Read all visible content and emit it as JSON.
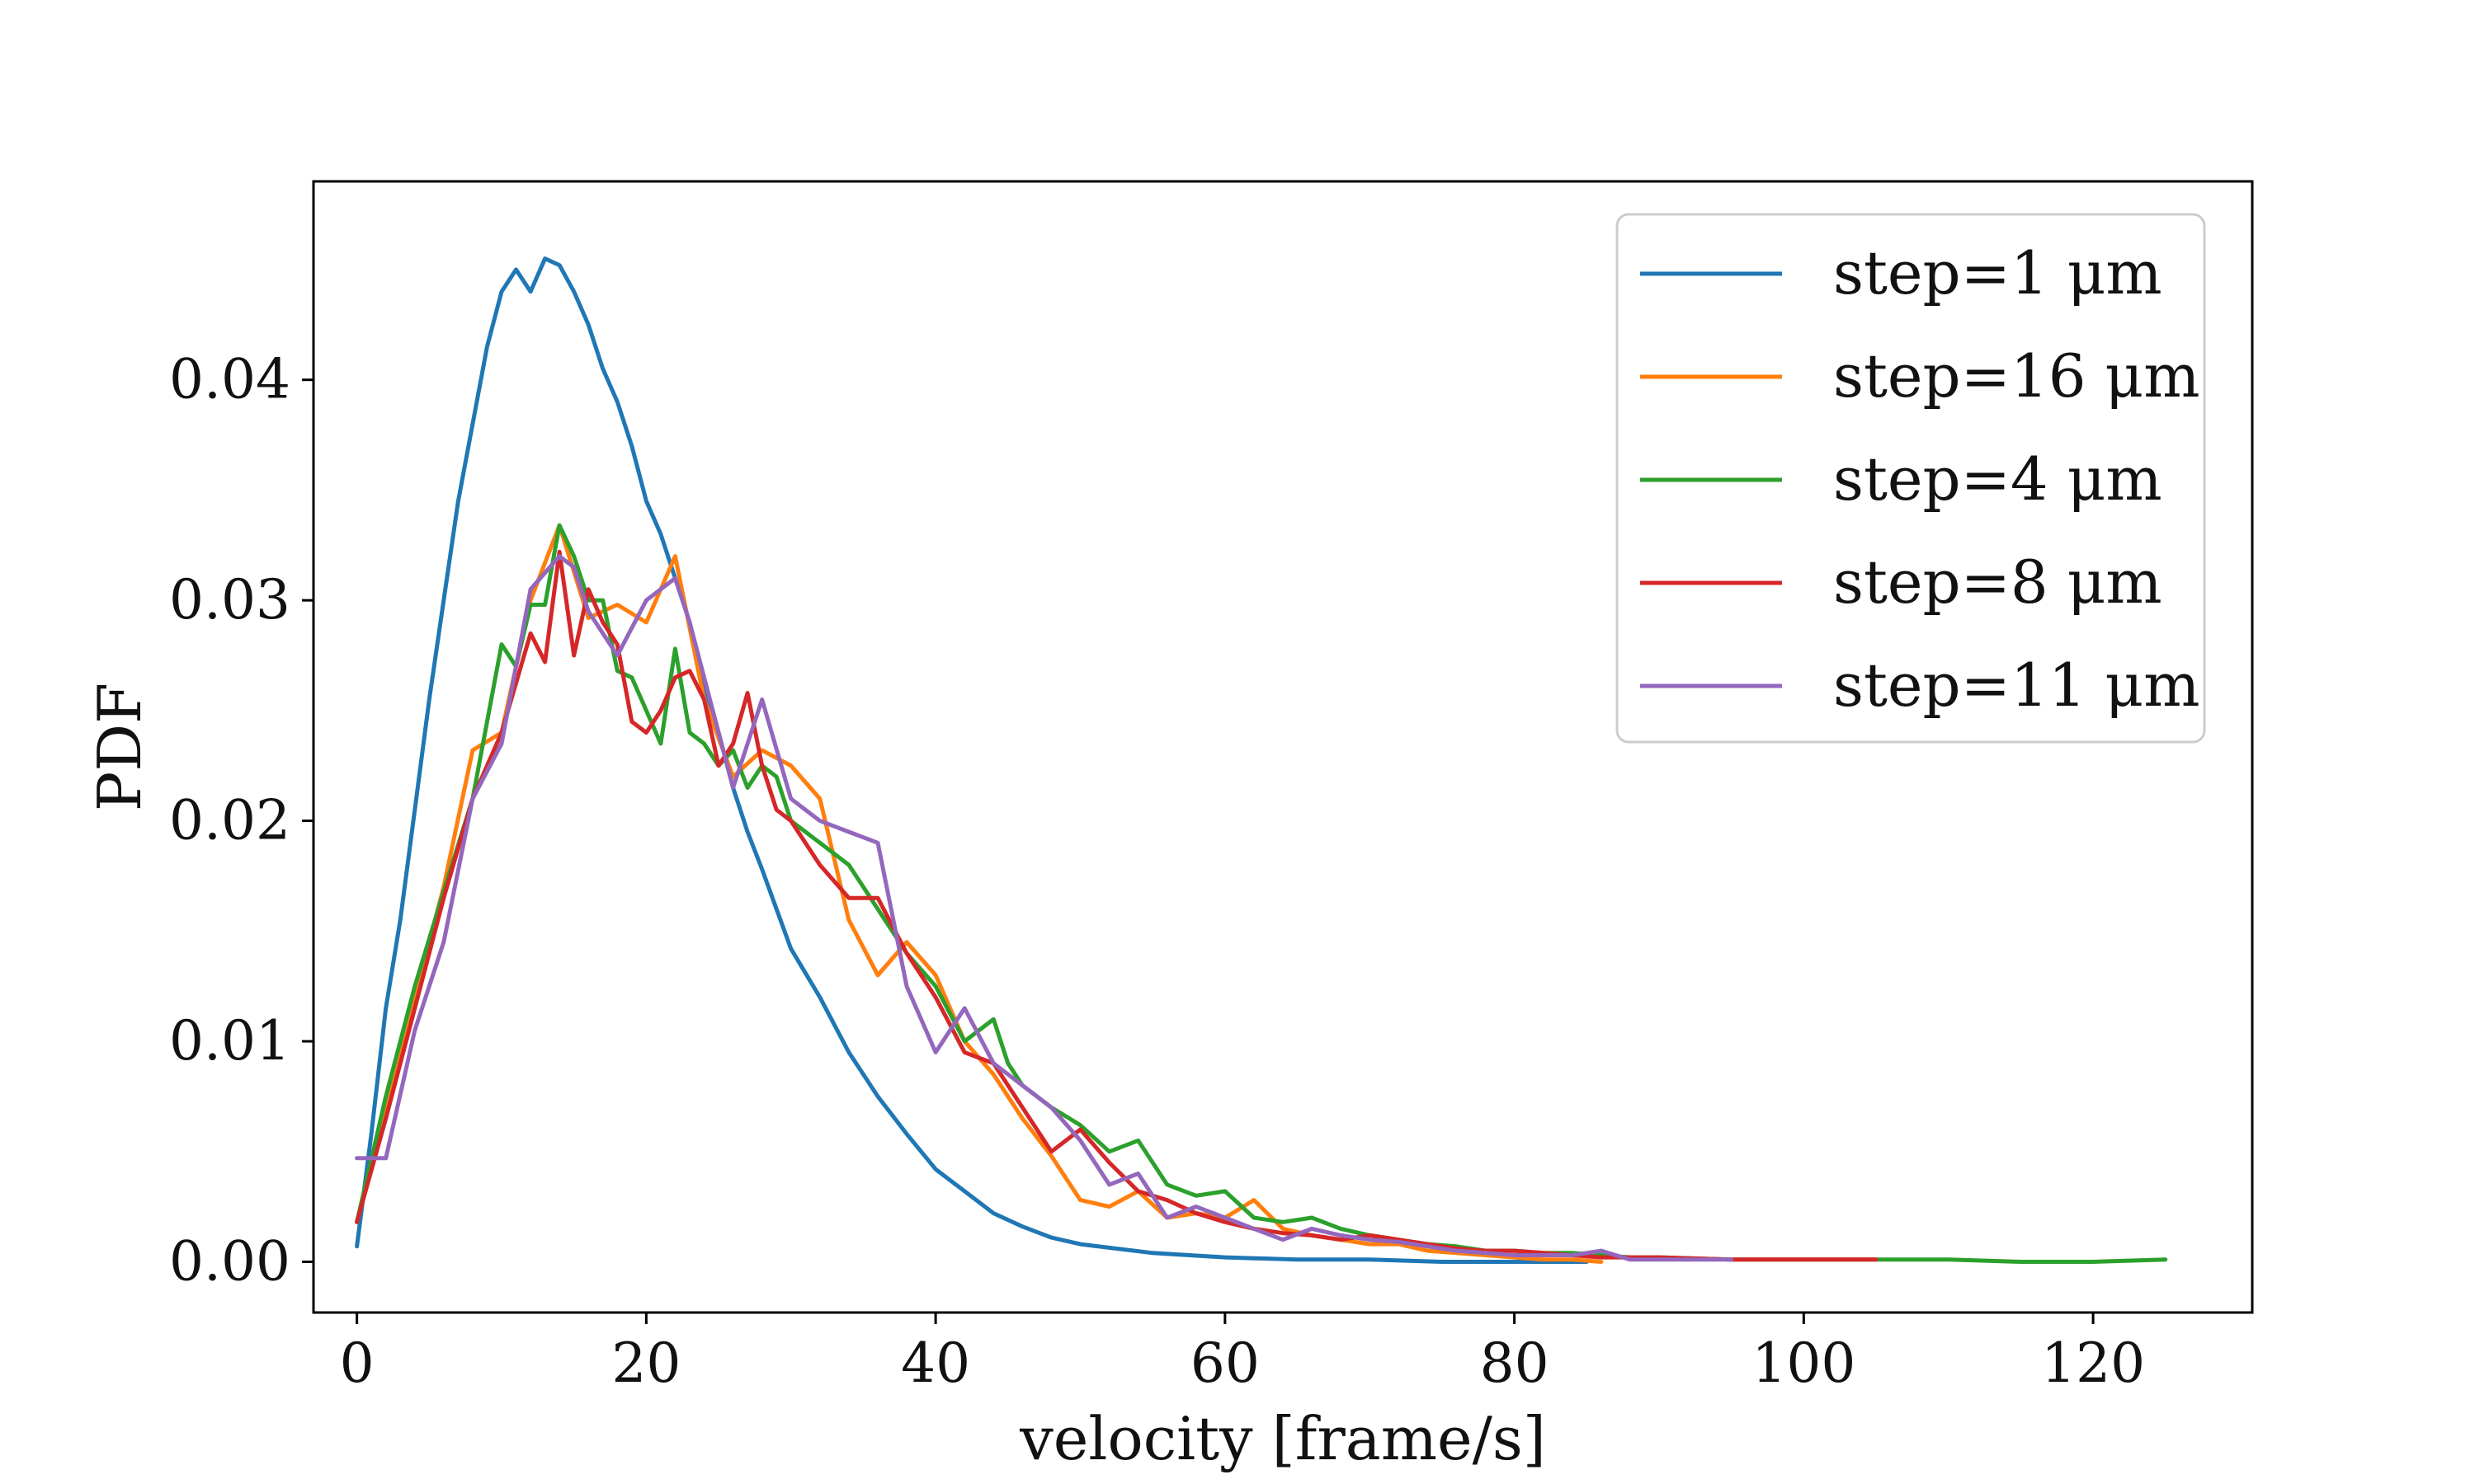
{
  "chart_data": {
    "type": "line",
    "xlabel": "velocity [frame/s]",
    "ylabel": "PDF",
    "xlim": [
      -3,
      131
    ],
    "ylim": [
      -0.0023,
      0.049
    ],
    "xticks": [
      0,
      20,
      40,
      60,
      80,
      100,
      120
    ],
    "xtick_labels": [
      "0",
      "20",
      "40",
      "60",
      "80",
      "100",
      "120"
    ],
    "yticks": [
      0.0,
      0.01,
      0.02,
      0.03,
      0.04
    ],
    "ytick_labels": [
      "0.00",
      "0.01",
      "0.02",
      "0.03",
      "0.04"
    ],
    "grid": false,
    "legend_position": "top-right",
    "series": [
      {
        "name": "step=1 μm",
        "color": "#1f77b4",
        "x": [
          0,
          1,
          2,
          3,
          4,
          5,
          6,
          7,
          8,
          9,
          10,
          11,
          12,
          13,
          14,
          15,
          16,
          17,
          18,
          19,
          20,
          21,
          22,
          23,
          24,
          25,
          26,
          27,
          28,
          29,
          30,
          32,
          34,
          36,
          38,
          40,
          42,
          44,
          46,
          48,
          50,
          55,
          60,
          65,
          70,
          75,
          80,
          85
        ],
        "y": [
          0.0007,
          0.0058,
          0.0115,
          0.0155,
          0.0205,
          0.0255,
          0.03,
          0.0345,
          0.038,
          0.0415,
          0.044,
          0.045,
          0.044,
          0.0455,
          0.0452,
          0.044,
          0.0425,
          0.0405,
          0.039,
          0.037,
          0.0345,
          0.033,
          0.031,
          0.029,
          0.0262,
          0.024,
          0.0215,
          0.0195,
          0.0178,
          0.016,
          0.0142,
          0.012,
          0.0095,
          0.0075,
          0.0058,
          0.0042,
          0.0032,
          0.0022,
          0.0016,
          0.0011,
          0.0008,
          0.0004,
          0.0002,
          0.0001,
          0.0001,
          0.0,
          0.0,
          0.0
        ]
      },
      {
        "name": "step=16 μm",
        "color": "#ff7f0e",
        "x": [
          0,
          2,
          4,
          6,
          8,
          10,
          12,
          14,
          16,
          18,
          20,
          22,
          24,
          26,
          28,
          30,
          32,
          34,
          36,
          38,
          40,
          42,
          44,
          46,
          48,
          50,
          52,
          54,
          56,
          58,
          60,
          62,
          64,
          66,
          68,
          70,
          72,
          74,
          76,
          78,
          80,
          82,
          84,
          86
        ],
        "y": [
          0.0018,
          0.007,
          0.012,
          0.017,
          0.0232,
          0.024,
          0.03,
          0.0334,
          0.0292,
          0.0298,
          0.029,
          0.032,
          0.0255,
          0.022,
          0.0232,
          0.0225,
          0.021,
          0.0155,
          0.013,
          0.0145,
          0.013,
          0.01,
          0.0085,
          0.0065,
          0.0048,
          0.0028,
          0.0025,
          0.0032,
          0.002,
          0.0022,
          0.002,
          0.0028,
          0.0015,
          0.0012,
          0.001,
          0.0008,
          0.0008,
          0.0005,
          0.0004,
          0.0003,
          0.0002,
          0.0001,
          0.0001,
          0.0
        ]
      },
      {
        "name": "step=4 μm",
        "color": "#2ca02c",
        "x": [
          0,
          2,
          4,
          6,
          8,
          10,
          11,
          12,
          13,
          14,
          15,
          16,
          17,
          18,
          19,
          20,
          21,
          22,
          23,
          24,
          25,
          26,
          27,
          28,
          29,
          30,
          32,
          34,
          36,
          38,
          40,
          42,
          44,
          45,
          46,
          48,
          50,
          52,
          54,
          56,
          58,
          60,
          62,
          64,
          66,
          68,
          70,
          72,
          74,
          76,
          78,
          80,
          82,
          84,
          86,
          88,
          90,
          95,
          100,
          105,
          110,
          115,
          120,
          125
        ],
        "y": [
          0.0018,
          0.0075,
          0.0125,
          0.0168,
          0.021,
          0.028,
          0.027,
          0.0298,
          0.0298,
          0.0334,
          0.032,
          0.03,
          0.03,
          0.0268,
          0.0265,
          0.025,
          0.0235,
          0.0278,
          0.024,
          0.0235,
          0.0225,
          0.0232,
          0.0215,
          0.0225,
          0.022,
          0.02,
          0.019,
          0.018,
          0.016,
          0.014,
          0.0125,
          0.01,
          0.011,
          0.009,
          0.008,
          0.007,
          0.0062,
          0.005,
          0.0055,
          0.0035,
          0.003,
          0.0032,
          0.002,
          0.0018,
          0.002,
          0.0015,
          0.0012,
          0.001,
          0.0008,
          0.0007,
          0.0005,
          0.0005,
          0.0004,
          0.0004,
          0.0003,
          0.0002,
          0.0002,
          0.0001,
          0.0001,
          0.0001,
          0.0001,
          0.0,
          0.0,
          0.0001
        ]
      },
      {
        "name": "step=8 μm",
        "color": "#d62728",
        "x": [
          0,
          2,
          4,
          6,
          8,
          10,
          12,
          13,
          14,
          15,
          16,
          17,
          18,
          19,
          20,
          21,
          22,
          23,
          24,
          25,
          26,
          27,
          28,
          29,
          30,
          32,
          34,
          36,
          38,
          40,
          42,
          44,
          46,
          48,
          50,
          52,
          54,
          56,
          58,
          60,
          62,
          64,
          66,
          68,
          70,
          72,
          74,
          76,
          78,
          80,
          82,
          84,
          86,
          88,
          90,
          95,
          100,
          105
        ],
        "y": [
          0.0018,
          0.0065,
          0.0115,
          0.0165,
          0.021,
          0.024,
          0.0285,
          0.0272,
          0.0322,
          0.0275,
          0.0305,
          0.029,
          0.028,
          0.0245,
          0.024,
          0.025,
          0.0265,
          0.0268,
          0.0255,
          0.0225,
          0.0235,
          0.0258,
          0.0225,
          0.0205,
          0.02,
          0.018,
          0.0165,
          0.0165,
          0.014,
          0.012,
          0.0095,
          0.009,
          0.007,
          0.005,
          0.006,
          0.0045,
          0.0032,
          0.0028,
          0.0022,
          0.0018,
          0.0015,
          0.0013,
          0.0012,
          0.001,
          0.0012,
          0.001,
          0.0008,
          0.0006,
          0.0005,
          0.0005,
          0.0004,
          0.0003,
          0.0002,
          0.0002,
          0.0002,
          0.0001,
          0.0001,
          0.0001
        ]
      },
      {
        "name": "step=11 μm",
        "color": "#9467bd",
        "x": [
          0,
          2,
          4,
          6,
          8,
          10,
          12,
          14,
          15,
          16,
          18,
          20,
          22,
          23,
          24,
          26,
          28,
          30,
          32,
          34,
          36,
          38,
          40,
          42,
          44,
          46,
          48,
          50,
          52,
          54,
          56,
          58,
          60,
          62,
          64,
          66,
          68,
          70,
          72,
          74,
          76,
          78,
          80,
          82,
          84,
          86,
          88,
          90,
          95
        ],
        "y": [
          0.0047,
          0.0047,
          0.0105,
          0.0145,
          0.021,
          0.0235,
          0.0305,
          0.032,
          0.0315,
          0.0295,
          0.0275,
          0.03,
          0.031,
          0.029,
          0.0265,
          0.0215,
          0.0255,
          0.021,
          0.02,
          0.0195,
          0.019,
          0.0125,
          0.0095,
          0.0115,
          0.009,
          0.008,
          0.007,
          0.0055,
          0.0035,
          0.004,
          0.002,
          0.0025,
          0.002,
          0.0015,
          0.001,
          0.0015,
          0.0012,
          0.001,
          0.0009,
          0.0007,
          0.0005,
          0.0004,
          0.0003,
          0.0003,
          0.0003,
          0.0005,
          0.0001,
          0.0001,
          0.0001
        ]
      }
    ]
  }
}
